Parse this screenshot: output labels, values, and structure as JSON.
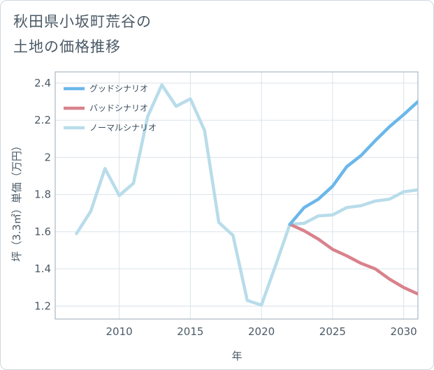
{
  "title": {
    "line1": "秋田県小坂町荒谷の",
    "line2": "土地の価格推移"
  },
  "colors": {
    "good": "#6bb7ea",
    "bad": "#d9828c",
    "normal": "#b8dcea",
    "grid": "#d9e3ea",
    "frame": "#9aaab6"
  },
  "chart_data": {
    "type": "line",
    "title": "秋田県小坂町荒谷の土地の価格推移",
    "xlabel": "年",
    "ylabel": "坪（3.3㎡）単価（万円）",
    "xlim": [
      2005.5,
      2031
    ],
    "ylim": [
      1.13,
      2.46
    ],
    "xticks": [
      2010,
      2015,
      2020,
      2025,
      2030
    ],
    "xtick_labels": [
      "2010",
      "2015",
      "2020",
      "2025",
      "2030"
    ],
    "yticks": [
      1.2,
      1.4,
      1.6,
      1.8,
      2.0,
      2.2,
      2.4
    ],
    "ytick_labels": [
      "1.2",
      "1.4",
      "1.6",
      "1.8",
      "2",
      "2.2",
      "2.4"
    ],
    "grid": true,
    "legend_position": "top-left",
    "series": [
      {
        "name": "グッドシナリオ",
        "color": "#6bb7ea",
        "x": [
          2022,
          2023,
          2024,
          2025,
          2026,
          2027,
          2028,
          2029,
          2030,
          2031
        ],
        "values": [
          1.64,
          1.73,
          1.775,
          1.845,
          1.95,
          2.01,
          2.09,
          2.165,
          2.23,
          2.3
        ]
      },
      {
        "name": "バッドシナリオ",
        "color": "#d9828c",
        "x": [
          2022,
          2023,
          2024,
          2025,
          2026,
          2027,
          2028,
          2029,
          2030,
          2031
        ],
        "values": [
          1.64,
          1.605,
          1.56,
          1.505,
          1.47,
          1.43,
          1.4,
          1.345,
          1.3,
          1.265
        ]
      },
      {
        "name": "ノーマルシナリオ",
        "color": "#b8dcea",
        "x": [
          2007,
          2008,
          2009,
          2010,
          2011,
          2012,
          2013,
          2014,
          2015,
          2016,
          2017,
          2018,
          2019,
          2020,
          2021,
          2022,
          2023,
          2024,
          2025,
          2026,
          2027,
          2028,
          2029,
          2030,
          2031
        ],
        "values": [
          1.59,
          1.71,
          1.94,
          1.795,
          1.86,
          2.22,
          2.39,
          2.275,
          2.315,
          2.145,
          1.65,
          1.58,
          1.23,
          1.205,
          1.42,
          1.64,
          1.645,
          1.685,
          1.69,
          1.73,
          1.74,
          1.765,
          1.775,
          1.815,
          1.825
        ]
      }
    ]
  }
}
